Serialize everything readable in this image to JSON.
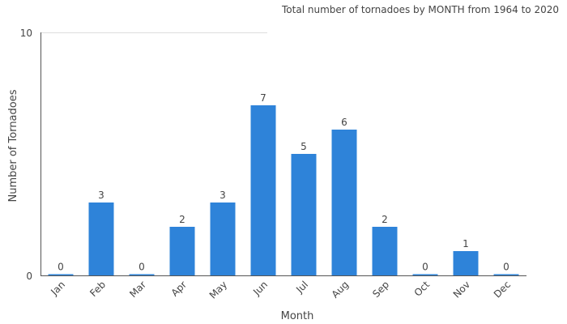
{
  "chart_data": {
    "type": "bar",
    "title": "Total number of tornadoes by MONTH from 1964 to 2020",
    "xlabel": "Month",
    "ylabel": "Number of Tornadoes",
    "categories": [
      "Jan",
      "Feb",
      "Mar",
      "Apr",
      "May",
      "Jun",
      "Jul",
      "Aug",
      "Sep",
      "Oct",
      "Nov",
      "Dec"
    ],
    "values": [
      0,
      3,
      0,
      2,
      3,
      7,
      5,
      6,
      2,
      0,
      1,
      0
    ],
    "ylim": [
      0,
      10
    ],
    "y_ticks": [
      "0",
      "10"
    ],
    "bar_color": "#2e83d9",
    "grid": false,
    "legend": "none"
  }
}
